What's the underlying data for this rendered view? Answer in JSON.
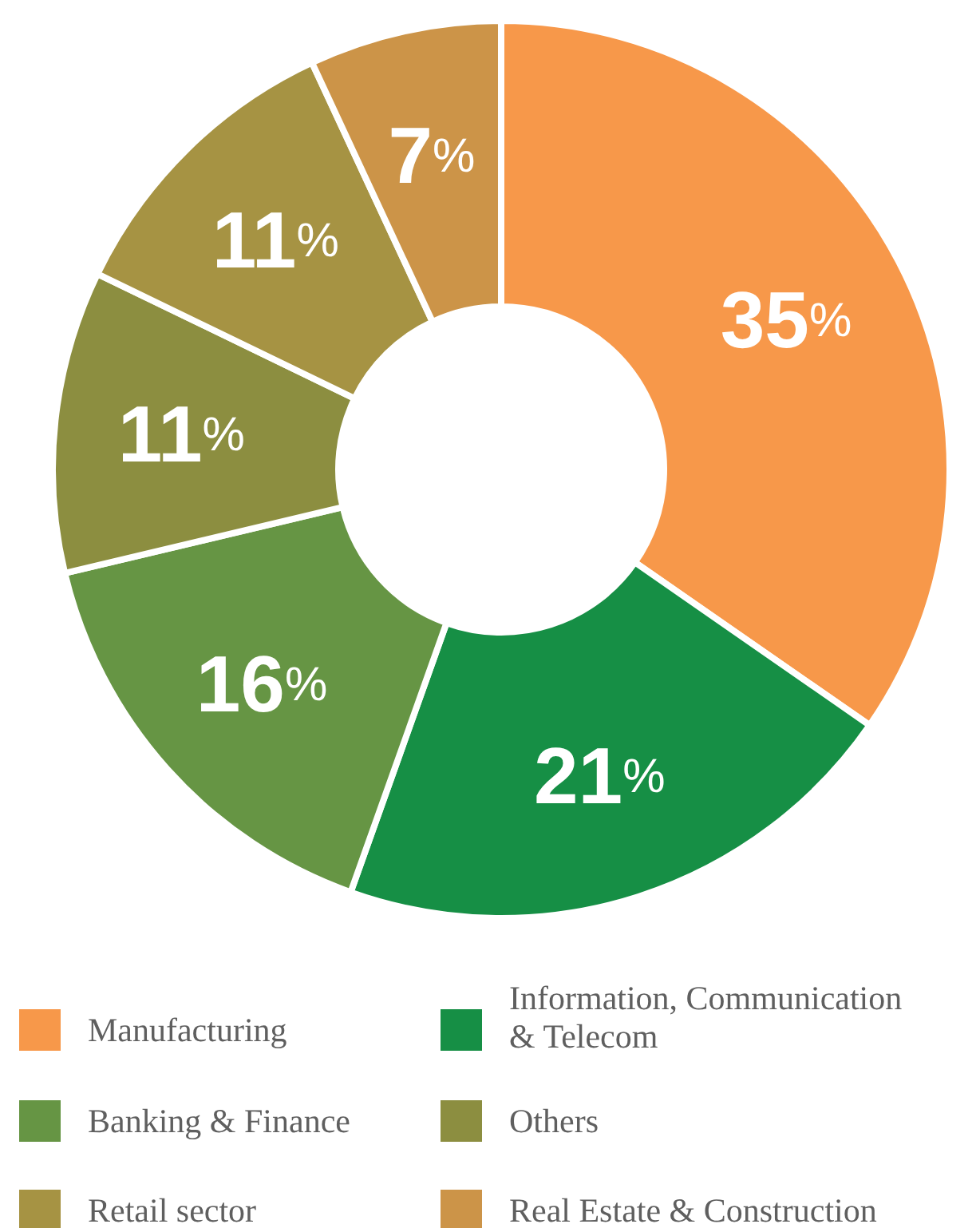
{
  "chart_data": {
    "type": "donut",
    "categories": [
      "Manufacturing",
      "Information, Communication & Telecom",
      "Banking & Finance",
      "Others",
      "Retail sector",
      "Real Estate & Construction"
    ],
    "values": [
      35,
      21,
      16,
      11,
      11,
      7
    ],
    "colors": [
      "#f7984a",
      "#168f45",
      "#669544",
      "#8c8e40",
      "#a69343",
      "#cc9448"
    ],
    "value_labels": [
      "35%",
      "21%",
      "16%",
      "11%",
      "11%",
      "7%"
    ],
    "legend": "bottom"
  }
}
